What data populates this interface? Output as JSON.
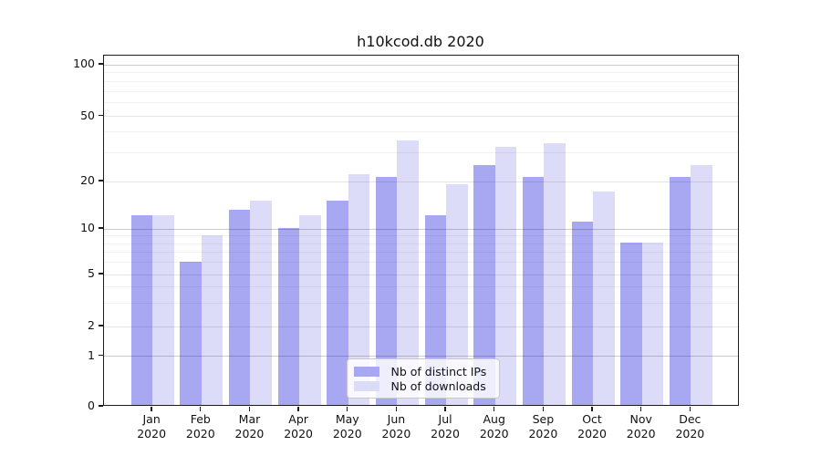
{
  "chart_data": {
    "type": "bar",
    "title": "h10kcod.db 2020",
    "y_scale": "symlog",
    "ylim": [
      0,
      115
    ],
    "y_ticks": [
      0,
      1,
      2,
      5,
      10,
      20,
      50,
      100
    ],
    "y_minor_gridlines": [
      3,
      4,
      6,
      7,
      8,
      9,
      30,
      40,
      60,
      70,
      80,
      90
    ],
    "grid": "on (major + log minor horizontal lines)",
    "legend_position": "lower center",
    "categories": [
      "Jan",
      "Feb",
      "Mar",
      "Apr",
      "May",
      "Jun",
      "Jul",
      "Aug",
      "Sep",
      "Oct",
      "Nov",
      "Dec"
    ],
    "x_tick_second_line": "2020",
    "series": [
      {
        "name": "Nb of distinct IPs",
        "color": "#a8a8f2",
        "values": [
          12,
          6,
          13,
          10,
          15,
          21,
          12,
          25,
          21,
          11,
          8,
          21
        ]
      },
      {
        "name": "Nb of downloads",
        "color": "#dcdcf8",
        "values": [
          12,
          9,
          15,
          12,
          22,
          35,
          19,
          32,
          34,
          17,
          8,
          25
        ]
      }
    ]
  },
  "colors": {
    "ips_bar": "#a8a8f2",
    "downloads_bar": "#dcdcf8",
    "axis": "#1c1c1c",
    "major_grid": "#cccccc",
    "minor_grid": "#efefef",
    "legend_border": "#c9c9c9"
  }
}
